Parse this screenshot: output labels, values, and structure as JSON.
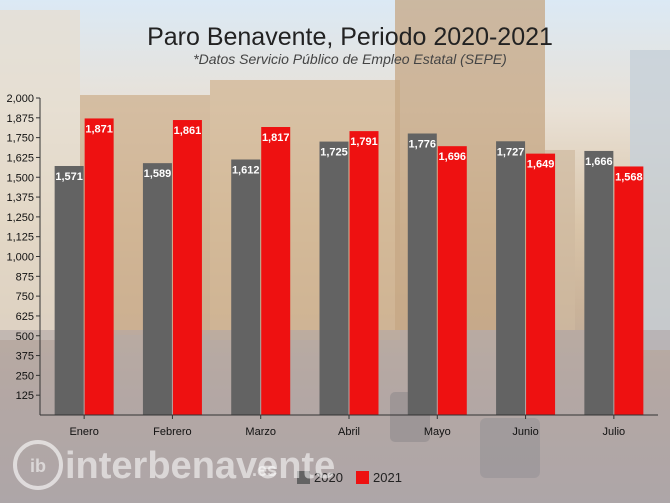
{
  "chart_data": {
    "type": "bar",
    "title": "Paro Benavente, Periodo 2020-2021",
    "subtitle": "*Datos Servicio Público de Empleo Estatal (SEPE)",
    "categories": [
      "Enero",
      "Febrero",
      "Marzo",
      "Abril",
      "Mayo",
      "Junio",
      "Julio"
    ],
    "series": [
      {
        "name": "2020",
        "color": "#636363",
        "values": [
          1571,
          1589,
          1612,
          1725,
          1776,
          1727,
          1666
        ],
        "labels": [
          "1,571",
          "1,589",
          "1,612",
          "1,725",
          "1,776",
          "1,727",
          "1,666"
        ]
      },
      {
        "name": "2021",
        "color": "#ee1111",
        "values": [
          1871,
          1861,
          1817,
          1791,
          1696,
          1649,
          1568
        ],
        "labels": [
          "1,871",
          "1,861",
          "1,817",
          "1,791",
          "1,696",
          "1,649",
          "1,568"
        ]
      }
    ],
    "ylim": [
      0,
      2000
    ],
    "yticks": [
      125,
      250,
      375,
      500,
      625,
      750,
      875,
      1000,
      1125,
      1250,
      1375,
      1500,
      1625,
      1750,
      1875,
      2000
    ],
    "ytick_labels": [
      "125",
      "250",
      "375",
      "500",
      "625",
      "750",
      "875",
      "1,000",
      "1,125",
      "1,250",
      "1,375",
      "1,500",
      "1,625",
      "1,750",
      "1,875",
      "2,000"
    ],
    "xlabel": "",
    "ylabel": "",
    "legend": "bottom-center"
  },
  "watermark": {
    "logo_letters": "ib",
    "text": "interbenavente",
    "suffix": ".es"
  }
}
